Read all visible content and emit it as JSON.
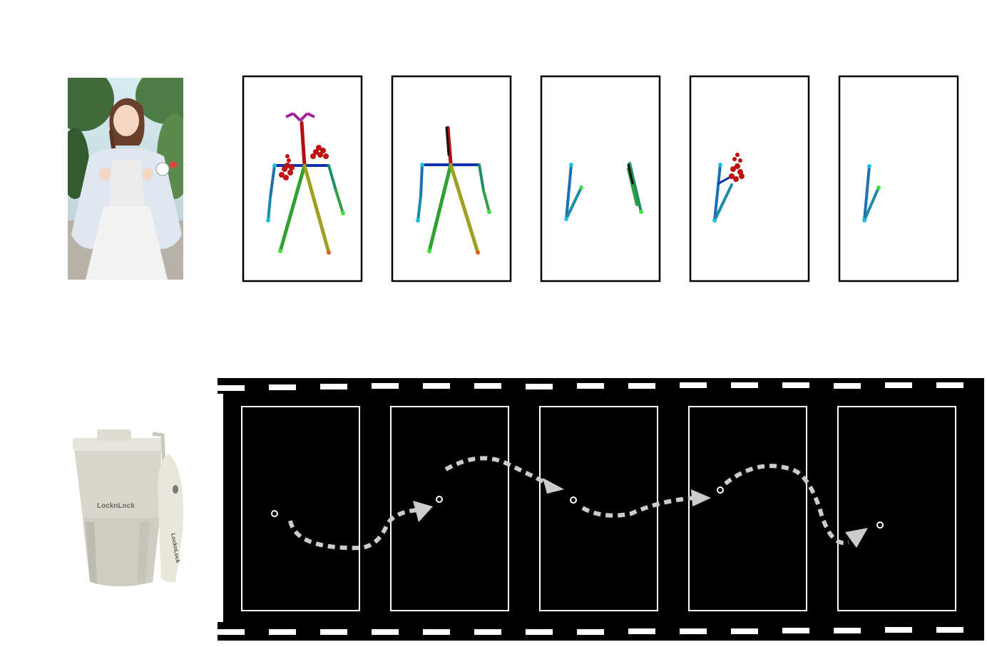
{
  "reference_person": {
    "icon": "person-photo",
    "colors": {
      "sky": "#cfe3ec",
      "trees": "#3f6b3a",
      "hair": "#6a3f2b",
      "skin": "#f3d6c4",
      "shirt": "#dfe8f2",
      "dress": "#f2f2f2"
    }
  },
  "pose_frames": [
    {
      "skeleton": "full-body",
      "face": true,
      "left_hand": true,
      "right_hand": true
    },
    {
      "skeleton": "full-body",
      "face": false,
      "left_hand": false,
      "right_hand": false
    },
    {
      "skeleton": "two-arms",
      "face": false,
      "left_hand": false,
      "right_hand": false
    },
    {
      "skeleton": "left-arm",
      "face": false,
      "left_hand": true,
      "right_hand": false
    },
    {
      "skeleton": "left-arm",
      "face": false,
      "left_hand": false,
      "right_hand": false
    }
  ],
  "reference_object": {
    "icon": "tumbler-photo",
    "brand_text": "LocknLock",
    "strap_text": "LocknLock",
    "colors": {
      "body": "#d8d6cb",
      "shadow": "#b9b7ac",
      "lid": "#e6e4da",
      "strap": "#e9e6da"
    }
  },
  "trajectory_strip": {
    "frames": 5,
    "background": "#000000",
    "frame_border": "#ffffff",
    "path_color": "#cccccc",
    "point_color": "#ffffff"
  }
}
